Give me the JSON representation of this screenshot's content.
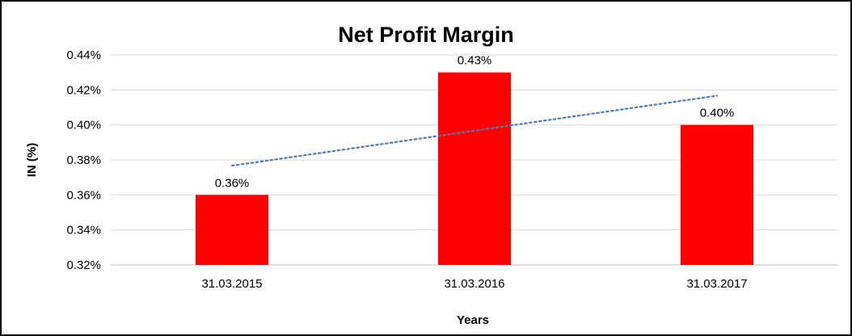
{
  "chart_data": {
    "type": "bar",
    "title": "Net Profit Margin",
    "xlabel": "Years",
    "ylabel": "IN (%)",
    "categories": [
      "31.03.2015",
      "31.03.2016",
      "31.03.2017"
    ],
    "values": [
      0.36,
      0.43,
      0.4
    ],
    "data_labels": [
      "0.36%",
      "0.43%",
      "0.40%"
    ],
    "ylim": [
      0.32,
      0.44
    ],
    "y_tick_values": [
      0.32,
      0.34,
      0.36,
      0.38,
      0.4,
      0.42,
      0.44
    ],
    "y_tick_labels": [
      "0.32%",
      "0.34%",
      "0.36%",
      "0.38%",
      "0.40%",
      "0.42%",
      "0.44%"
    ],
    "grid": true,
    "legend": false,
    "colors": {
      "bar": "#FF0000",
      "gridline": "#D9D9D9",
      "axis_line": "#BFBFBF",
      "trendline": "#4A7EBB",
      "text": "#000000",
      "frame_border": "#000000"
    },
    "trendline": {
      "kind": "linear",
      "line_style": "dotted",
      "start_value": 0.3767,
      "end_value": 0.4167
    }
  }
}
